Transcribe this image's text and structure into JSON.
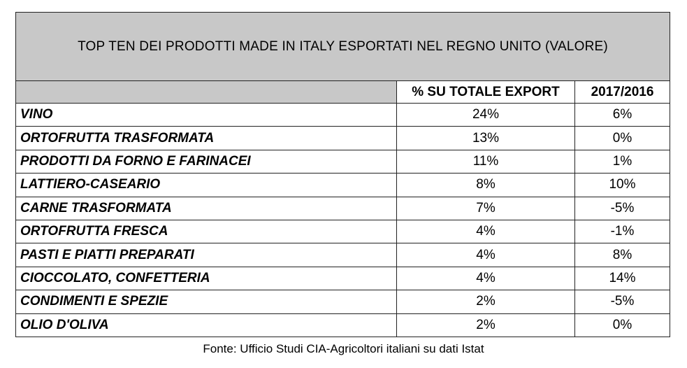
{
  "chart_data": {
    "type": "table",
    "title": "TOP TEN DEI PRODOTTI MADE IN ITALY ESPORTATI NEL REGNO UNITO (VALORE)",
    "columns": [
      "",
      "% SU TOTALE EXPORT",
      "2017/2016"
    ],
    "rows": [
      {
        "product": "VINO",
        "share": "24%",
        "change": "6%"
      },
      {
        "product": "ORTOFRUTTA TRASFORMATA",
        "share": "13%",
        "change": "0%"
      },
      {
        "product": "PRODOTTI DA FORNO E FARINACEI",
        "share": "11%",
        "change": "1%"
      },
      {
        "product": "LATTIERO-CASEARIO",
        "share": "8%",
        "change": "10%"
      },
      {
        "product": "CARNE TRASFORMATA",
        "share": "7%",
        "change": "-5%"
      },
      {
        "product": "ORTOFRUTTA FRESCA",
        "share": "4%",
        "change": "-1%"
      },
      {
        "product": "PASTI E PIATTI PREPARATI",
        "share": "4%",
        "change": "8%"
      },
      {
        "product": "CIOCCOLATO, CONFETTERIA",
        "share": "4%",
        "change": "14%"
      },
      {
        "product": "CONDIMENTI E SPEZIE",
        "share": "2%",
        "change": "-5%"
      },
      {
        "product": "OLIO D'OLIVA",
        "share": "2%",
        "change": "0%"
      }
    ],
    "source": "Fonte: Ufficio Studi CIA-Agricoltori italiani su dati Istat"
  },
  "colors": {
    "header_bg": "#c8c8c8",
    "border": "#222222"
  }
}
